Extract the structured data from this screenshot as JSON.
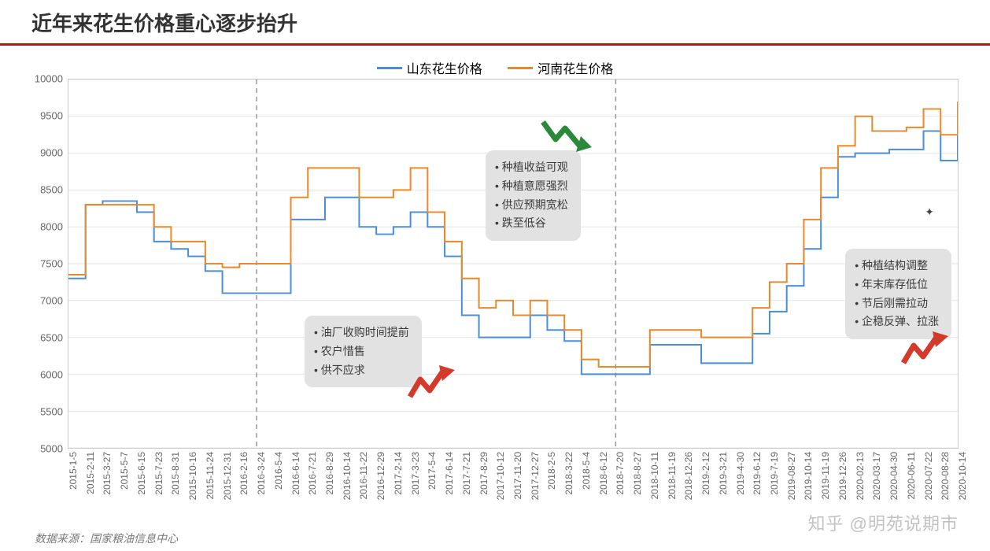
{
  "title": "近年来花生价格重心逐步抬升",
  "source_label": "数据来源：国家粮油信息中心",
  "watermark": "知乎 @明苑说期市",
  "legend": {
    "series1": {
      "label": "山东花生价格",
      "color": "#4a8fd6"
    },
    "series2": {
      "label": "河南花生价格",
      "color": "#e88a2a"
    }
  },
  "chart": {
    "type": "step-line",
    "ylim": [
      5000,
      10000
    ],
    "ytick_step": 500,
    "grid_color": "#e6e6e6",
    "border_color": "#cccccc",
    "background_color": "#ffffff",
    "divider_color": "#999999",
    "divider_dates": [
      "2016-3-24",
      "2018-7-20"
    ],
    "y_ticks": [
      5000,
      5500,
      6000,
      6500,
      7000,
      7500,
      8000,
      8500,
      9000,
      9500,
      10000
    ],
    "x_labels": [
      "2015-1-5",
      "2015-2-11",
      "2015-3-27",
      "2015-5-7",
      "2015-6-15",
      "2015-7-23",
      "2015-8-31",
      "2015-10-16",
      "2015-11-24",
      "2015-12-31",
      "2016-2-16",
      "2016-3-24",
      "2016-5-4",
      "2016-6-14",
      "2016-7-21",
      "2016-8-29",
      "2016-10-14",
      "2016-11-22",
      "2016-12-29",
      "2017-2-14",
      "2017-3-23",
      "2017-5-4",
      "2017-6-14",
      "2017-7-21",
      "2017-8-29",
      "2017-10-12",
      "2017-11-20",
      "2017-12-27",
      "2018-2-5",
      "2018-3-22",
      "2018-5-4",
      "2018-6-12",
      "2018-7-20",
      "2018-8-27",
      "2018-10-11",
      "2018-11-19",
      "2018-12-26",
      "2019-2-12",
      "2019-3-21",
      "2019-4-30",
      "2019-6-12",
      "2019-7-19",
      "2019-08-27",
      "2019-10-14",
      "2019-11-19",
      "2019-12-26",
      "2020-02-13",
      "2020-03-17",
      "2020-04-30",
      "2020-06-11",
      "2020-07-22",
      "2020-08-28",
      "2020-10-14"
    ],
    "series": [
      {
        "name": "山东花生价格",
        "color": "#4a8fd6",
        "line_width": 2,
        "values": [
          7300,
          8300,
          8350,
          8350,
          8200,
          7800,
          7700,
          7600,
          7400,
          7100,
          7100,
          7100,
          7100,
          8100,
          8100,
          8400,
          8400,
          8000,
          7900,
          8000,
          8200,
          8000,
          7600,
          6800,
          6500,
          6500,
          6500,
          6800,
          6600,
          6450,
          6000,
          6000,
          6000,
          6000,
          6400,
          6400,
          6400,
          6150,
          6150,
          6150,
          6550,
          6850,
          7200,
          7700,
          8400,
          8950,
          9000,
          9000,
          9050,
          9050,
          9300,
          8900,
          9400
        ]
      },
      {
        "name": "河南花生价格",
        "color": "#e88a2a",
        "line_width": 2,
        "values": [
          7350,
          8300,
          8300,
          8300,
          8300,
          8000,
          7800,
          7800,
          7500,
          7450,
          7500,
          7500,
          7500,
          8400,
          8800,
          8800,
          8800,
          8400,
          8400,
          8500,
          8800,
          8200,
          7800,
          7300,
          6900,
          7000,
          6800,
          7000,
          6800,
          6600,
          6200,
          6100,
          6100,
          6100,
          6600,
          6600,
          6600,
          6500,
          6500,
          6500,
          6900,
          7250,
          7500,
          8100,
          8800,
          9100,
          9500,
          9300,
          9300,
          9350,
          9600,
          9250,
          9700
        ]
      }
    ]
  },
  "callouts": {
    "c1": {
      "items": [
        "油厂收购时间提前",
        "农户惜售",
        "供不应求"
      ],
      "arrow_color": "#d43a2a",
      "arrow_dir": "up"
    },
    "c2": {
      "items": [
        "种植收益可观",
        "种植意愿强烈",
        "供应预期宽松",
        "跌至低谷"
      ],
      "arrow_color": "#2a8a3a",
      "arrow_dir": "down"
    },
    "c3": {
      "items": [
        "种植结构调整",
        "年末库存低位",
        "节后刚需拉动",
        "企稳反弹、拉涨"
      ],
      "arrow_color": "#d43a2a",
      "arrow_dir": "up"
    }
  },
  "colors": {
    "title_underline": "#b01818",
    "text": "#333333",
    "axis_text": "#666666"
  },
  "fontsize": {
    "title": 26,
    "legend": 16,
    "axis": 13,
    "callout": 14
  }
}
